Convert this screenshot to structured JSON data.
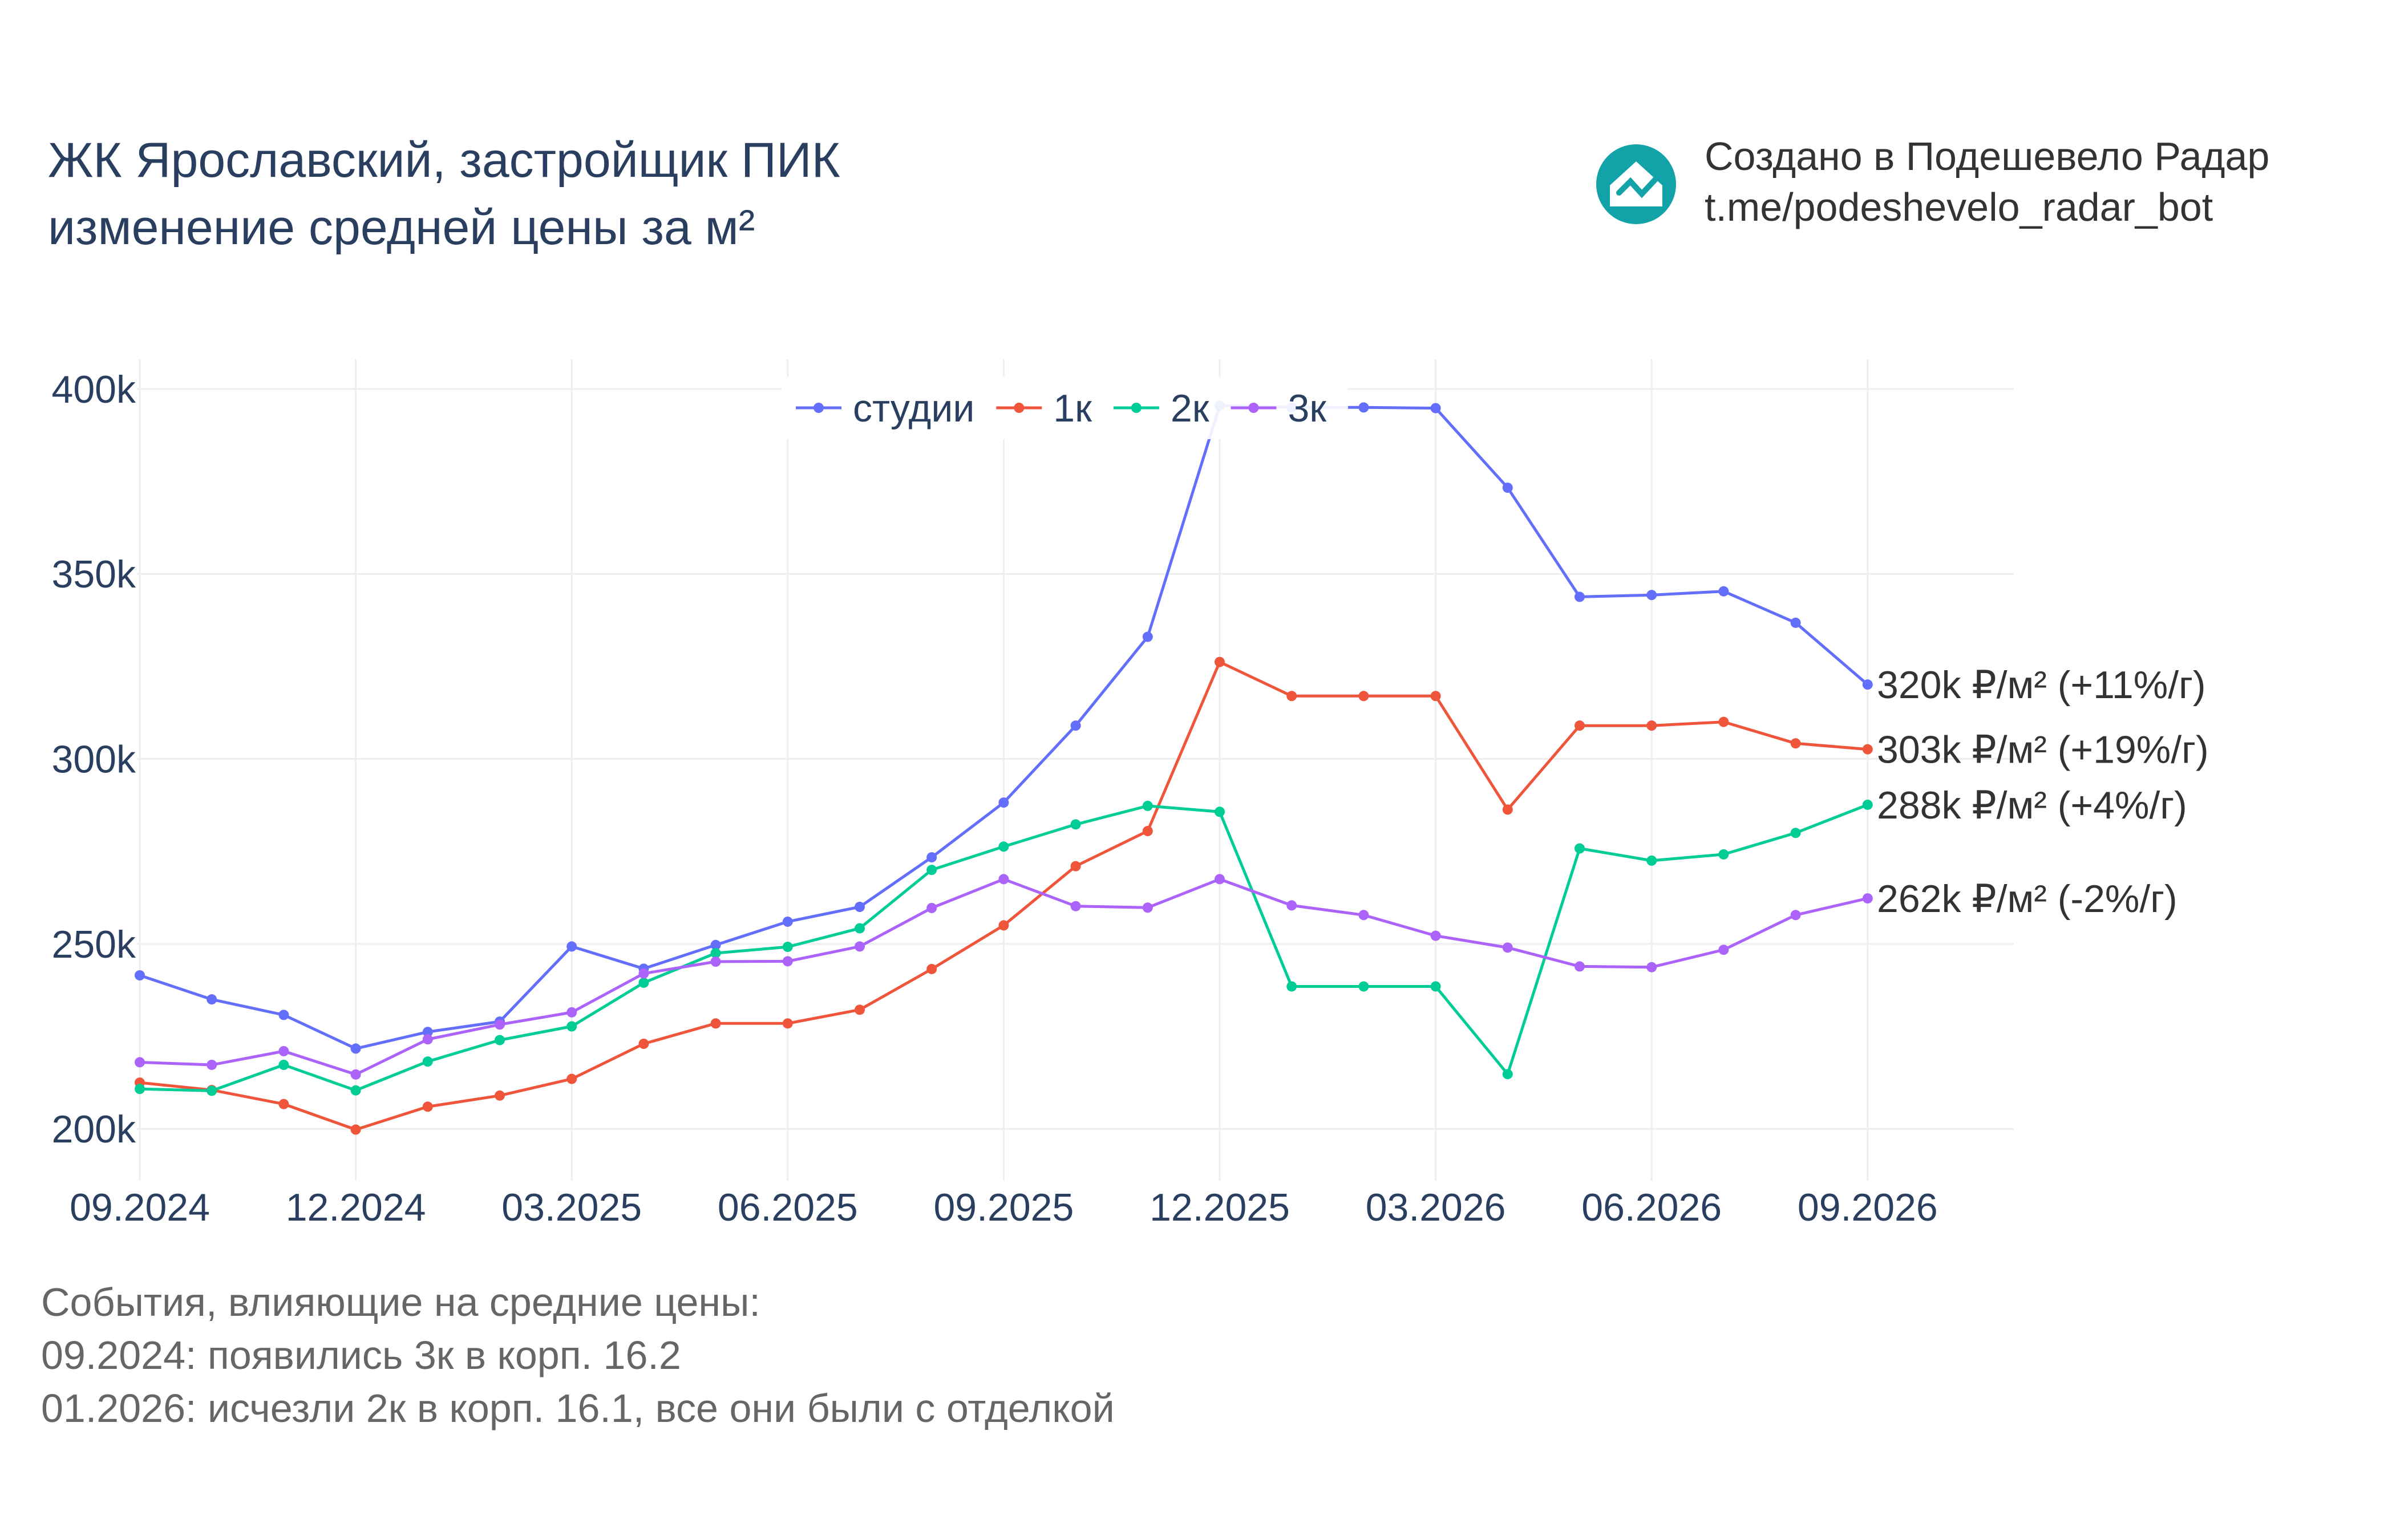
{
  "header": {
    "title_line1": "ЖК Ярославский, застройщик ПИК",
    "title_line2": "изменение средней цены за м²"
  },
  "branding": {
    "icon": "house-chart-icon",
    "line1": "Создано в Подешевело Радар",
    "line2": "t.me/podeshevelo_radar_bot",
    "icon_color": "#12a3a8"
  },
  "notes": {
    "heading": "События, влияющие на средние цены:",
    "items": [
      "09.2024: появились 3к в корп. 16.2",
      "01.2026: исчезли 2к в корп. 16.1, все они были с отделкой"
    ]
  },
  "chart_data": {
    "type": "line",
    "x": [
      "09.2024",
      "10.2024",
      "11.2024",
      "12.2024",
      "01.2025",
      "02.2025",
      "03.2025",
      "04.2025",
      "05.2025",
      "06.2025",
      "07.2025",
      "08.2025",
      "09.2025",
      "10.2025",
      "11.2025",
      "12.2025",
      "01.2026",
      "02.2026",
      "03.2026",
      "04.2026",
      "05.2026",
      "06.2026",
      "07.2026",
      "08.2026",
      "09.2026"
    ],
    "x_tick_labels": [
      "09.2024",
      "12.2024",
      "03.2025",
      "06.2025",
      "09.2025",
      "12.2025",
      "03.2026",
      "06.2026",
      "09.2026"
    ],
    "ylim": [
      186000,
      408000
    ],
    "y_ticks": [
      200000,
      250000,
      300000,
      350000,
      400000
    ],
    "y_tick_labels": [
      "200k",
      "250k",
      "300k",
      "350k",
      "400k"
    ],
    "grid": true,
    "legend_position": "top-center",
    "series": [
      {
        "name": "студии",
        "color": "#636efa",
        "values": [
          241500,
          235000,
          230800,
          221700,
          226200,
          229000,
          249300,
          243300,
          249700,
          256000,
          260000,
          273400,
          288200,
          309000,
          333000,
          395500,
          395000,
          395000,
          394800,
          373300,
          343800,
          344300,
          345300,
          336800,
          320100
        ],
        "end_label": "320k ₽/м² (+11%/г)"
      },
      {
        "name": "1к",
        "color": "#ef553b",
        "values": [
          212500,
          210500,
          206700,
          199800,
          206000,
          209000,
          213500,
          223000,
          228500,
          228500,
          232200,
          243200,
          255000,
          271000,
          280500,
          326200,
          317000,
          317000,
          317000,
          286300,
          309000,
          309000,
          310000,
          304200,
          302600
        ],
        "end_label": "303k ₽/м² (+19%/г)"
      },
      {
        "name": "2к",
        "color": "#00cc96",
        "values": [
          210800,
          210300,
          217300,
          210400,
          218200,
          224000,
          227700,
          239500,
          247500,
          249200,
          254200,
          270000,
          276300,
          282300,
          287300,
          285700,
          238500,
          238500,
          238500,
          214800,
          275800,
          272500,
          274200,
          280000,
          287600
        ],
        "end_label": "288k ₽/м² (+4%/г)"
      },
      {
        "name": "3к",
        "color": "#ab63fa",
        "values": [
          218000,
          217300,
          221000,
          214700,
          224200,
          228200,
          231500,
          242000,
          245200,
          245300,
          249300,
          259700,
          267500,
          260200,
          259800,
          267500,
          260400,
          257800,
          252200,
          249000,
          243900,
          243700,
          248400,
          257800,
          262300
        ],
        "end_label": "262k ₽/м² (-2%/г)"
      }
    ]
  }
}
